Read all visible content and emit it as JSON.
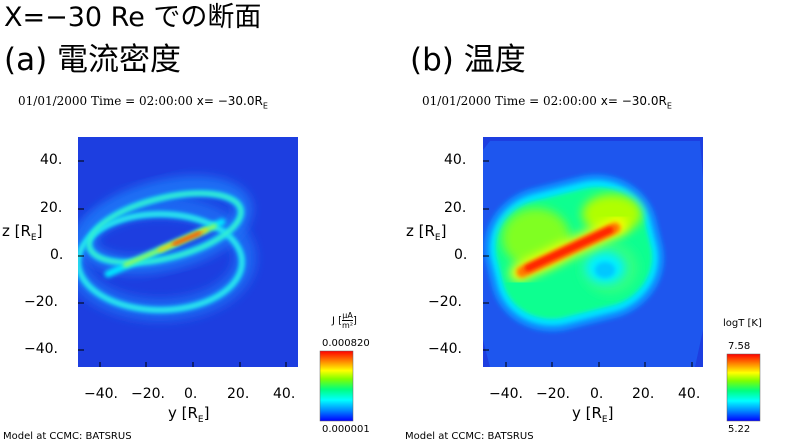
{
  "title": "X=−30 Re での断面",
  "panels": [
    {
      "heading": "(a) 電流密度",
      "header_date": "01/01/2000",
      "header_time": "Time = 02:00:00",
      "header_x": "x= −30.0R",
      "header_x_sub": "E",
      "y_ticks": [
        "40.",
        "20.",
        "0.",
        "−20.",
        "−40."
      ],
      "x_ticks": [
        "−40.",
        "−20.",
        "0.",
        "20.",
        "40."
      ],
      "ylabel": "z [R",
      "xlabel": "y [R",
      "label_sub": "E",
      "colorbar_label": "J [",
      "colorbar_unit_num": "μA",
      "colorbar_unit_den": "m²",
      "colorbar_max": "0.000820",
      "colorbar_min": "0.000001",
      "footer": "Model at CCMC: BATSRUS"
    },
    {
      "heading": "(b) 温度",
      "header_date": "01/01/2000",
      "header_time": "Time = 02:00:00",
      "header_x": "x= −30.0R",
      "header_x_sub": "E",
      "y_ticks": [
        "40.",
        "20.",
        "0.",
        "−20.",
        "−40."
      ],
      "x_ticks": [
        "−40.",
        "−20.",
        "0.",
        "20.",
        "40."
      ],
      "ylabel": "z [R",
      "xlabel": "y [R",
      "label_sub": "E",
      "colorbar_label": "logT [K]",
      "colorbar_max": "7.58",
      "colorbar_min": "5.22",
      "footer": "Model at CCMC: BATSRUS"
    }
  ],
  "colors": {
    "background_blue": "#1e3fd8",
    "rainbow": [
      "#0000ff",
      "#00aaff",
      "#00ffff",
      "#00ff88",
      "#66ff00",
      "#ffff00",
      "#ff8800",
      "#ff0000"
    ]
  }
}
